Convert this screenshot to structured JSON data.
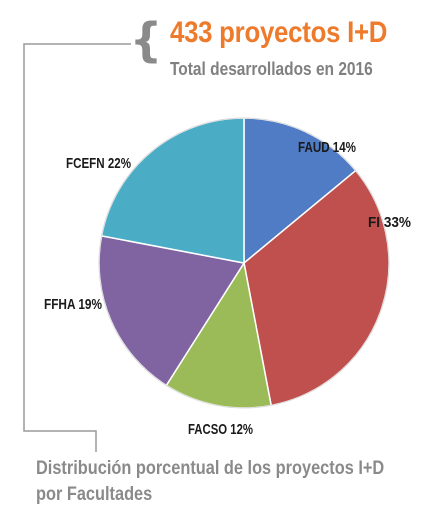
{
  "header": {
    "headline": "433 proyectos I+D",
    "subheadline": "Total desarrollados en 2016",
    "brace_icon": "curly-brace-icon"
  },
  "caption": {
    "line1": "Distribución porcentual de los proyectos I+D",
    "line2": "por Facultades"
  },
  "colors": {
    "headline": "#ee7b2c",
    "muted": "#808080",
    "connector": "#9a9a9a"
  },
  "chart_data": {
    "type": "pie",
    "title": "",
    "slices": [
      {
        "name": "FAUD",
        "value": 14,
        "label": "FAUD 14%",
        "color": "#4f7cc4"
      },
      {
        "name": "FI",
        "value": 33,
        "label": "FI 33%",
        "color": "#c0504d"
      },
      {
        "name": "FACSO",
        "value": 12,
        "label": "FACSO 12%",
        "color": "#9bbb59"
      },
      {
        "name": "FFHA",
        "value": 19,
        "label": "FFHA 19%",
        "color": "#8064a2"
      },
      {
        "name": "FCEFN",
        "value": 22,
        "label": "FCEFN 22%",
        "color": "#4bacc6"
      }
    ],
    "start": "12 o'clock",
    "direction": "clockwise",
    "legend": "none (labels on slices)"
  }
}
